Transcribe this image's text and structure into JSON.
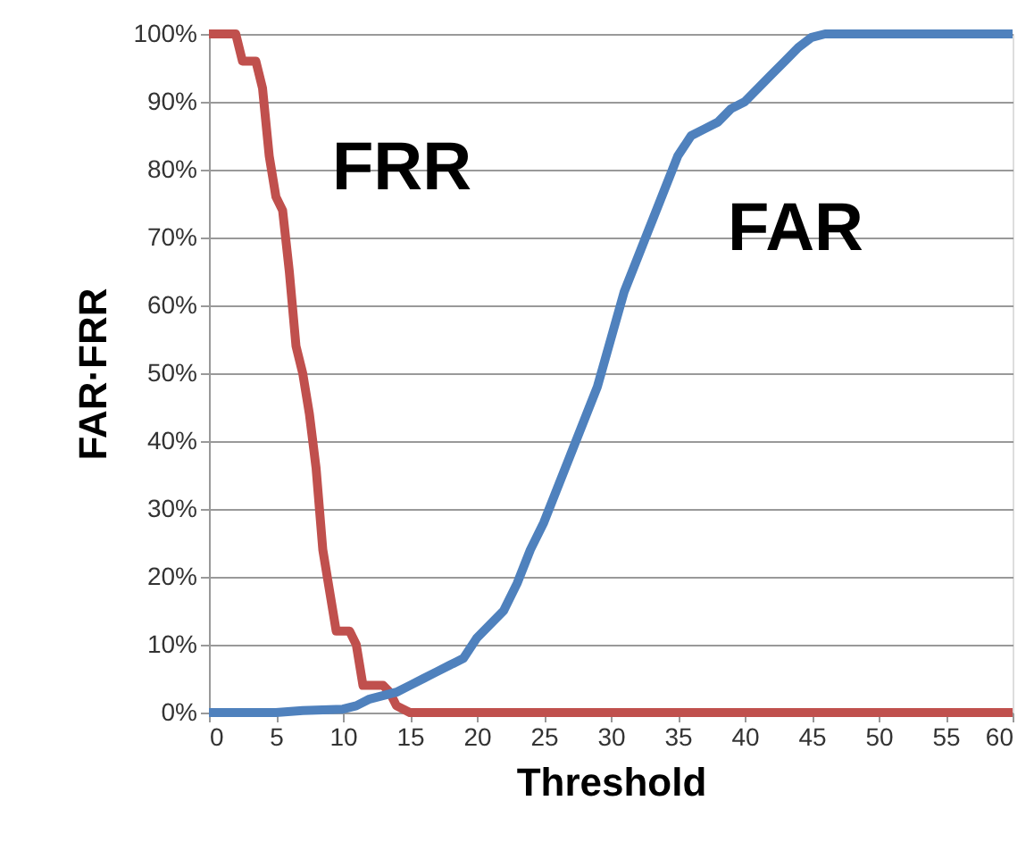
{
  "chart_data": {
    "type": "line",
    "xlabel": "Threshold",
    "ylabel": "FAR·FRR",
    "xlim": [
      0,
      60
    ],
    "xticks": [
      0,
      5,
      10,
      15,
      20,
      25,
      30,
      35,
      40,
      45,
      50,
      55,
      60
    ],
    "ylim": [
      0,
      100
    ],
    "yticks": [
      {
        "value": 0,
        "label": "0%"
      },
      {
        "value": 10,
        "label": "10%"
      },
      {
        "value": 20,
        "label": "20%"
      },
      {
        "value": 30,
        "label": "30%"
      },
      {
        "value": 40,
        "label": "40%"
      },
      {
        "value": 50,
        "label": "50%"
      },
      {
        "value": 60,
        "label": "60%"
      },
      {
        "value": 70,
        "label": "70%"
      },
      {
        "value": 80,
        "label": "80%"
      },
      {
        "value": 90,
        "label": "90%"
      },
      {
        "value": 100,
        "label": "100%"
      }
    ],
    "grid": "y",
    "marker": "none",
    "line_style": "solid",
    "series": [
      {
        "name": "FRR",
        "color": "#c0504d",
        "x": [
          0,
          2,
          2.5,
          3.5,
          4,
          4.5,
          5,
          5.5,
          6,
          6.5,
          7,
          7.5,
          8,
          8.5,
          9,
          9.5,
          10.5,
          11,
          11.5,
          13,
          13.5,
          14,
          15,
          60
        ],
        "values": [
          100,
          100,
          96,
          96,
          92,
          82,
          76,
          74,
          65,
          54,
          50,
          44,
          36,
          24,
          18,
          12,
          12,
          10,
          4,
          4,
          3,
          1,
          0,
          0
        ]
      },
      {
        "name": "FAR",
        "color": "#4f81bd",
        "x": [
          0,
          5,
          7,
          10,
          11,
          12,
          14,
          15,
          16,
          17,
          18,
          19,
          20,
          21,
          22,
          23,
          24,
          25,
          26,
          27,
          28,
          29,
          30,
          31,
          32,
          33,
          34,
          35,
          36,
          37,
          38,
          39,
          40,
          41,
          42,
          43,
          44,
          45,
          46,
          60
        ],
        "values": [
          0,
          0,
          0.3,
          0.5,
          1,
          2,
          3,
          4,
          5,
          6,
          7,
          8,
          11,
          13,
          15,
          19,
          24,
          28,
          33,
          38,
          43,
          48,
          55,
          62,
          67,
          72,
          77,
          82,
          85,
          86,
          87,
          89,
          90,
          92,
          94,
          96,
          98,
          99.5,
          100,
          100
        ]
      }
    ]
  }
}
